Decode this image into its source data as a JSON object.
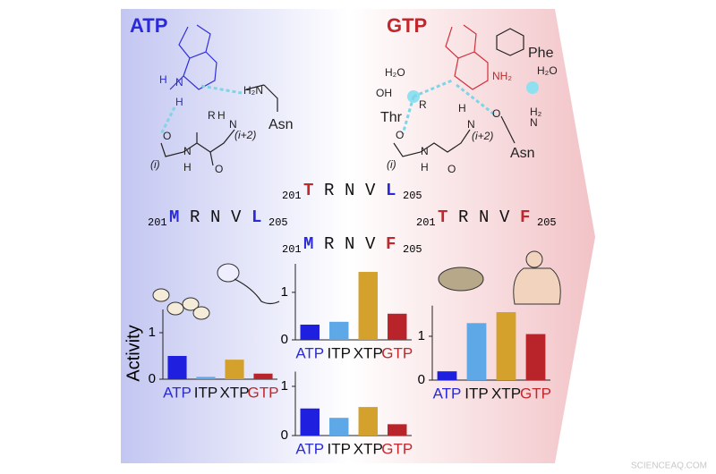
{
  "chart_data": [
    {
      "type": "bar",
      "ylabel": "Activity",
      "categories": [
        "ATP",
        "ITP",
        "XTP",
        "GTP"
      ],
      "label_colors": [
        "#2a2ad6",
        "#111111",
        "#111111",
        "#c0282d"
      ],
      "values": [
        0.5,
        0.05,
        0.42,
        0.12
      ],
      "colors": [
        "#1f1fe0",
        "#5ea8e8",
        "#d3a12c",
        "#b8242a"
      ],
      "ylim": [
        0,
        1.5
      ],
      "yticks": [
        0,
        1
      ]
    },
    {
      "type": "bar",
      "categories": [
        "ATP",
        "ITP",
        "XTP",
        "GTP"
      ],
      "label_colors": [
        "#2a2ad6",
        "#111111",
        "#111111",
        "#c0282d"
      ],
      "values": [
        0.32,
        0.38,
        1.43,
        0.55
      ],
      "colors": [
        "#1f1fe0",
        "#5ea8e8",
        "#d3a12c",
        "#b8242a"
      ],
      "ylim": [
        0,
        1.6
      ],
      "yticks": [
        0,
        1
      ]
    },
    {
      "type": "bar",
      "categories": [
        "ATP",
        "ITP",
        "XTP",
        "GTP"
      ],
      "label_colors": [
        "#2a2ad6",
        "#111111",
        "#111111",
        "#c0282d"
      ],
      "values": [
        0.55,
        0.36,
        0.58,
        0.23
      ],
      "colors": [
        "#1f1fe0",
        "#5ea8e8",
        "#d3a12c",
        "#b8242a"
      ],
      "ylim": [
        0,
        1.3
      ],
      "yticks": [
        0,
        1
      ]
    },
    {
      "type": "bar",
      "categories": [
        "ATP",
        "ITP",
        "XTP",
        "GTP"
      ],
      "label_colors": [
        "#2a2ad6",
        "#111111",
        "#111111",
        "#c0282d"
      ],
      "values": [
        0.2,
        1.3,
        1.55,
        1.05
      ],
      "colors": [
        "#1f1fe0",
        "#5ea8e8",
        "#d3a12c",
        "#b8242a"
      ],
      "ylim": [
        0,
        1.7
      ],
      "yticks": [
        0,
        1
      ]
    }
  ],
  "figure": {
    "left_title": "ATP",
    "right_title": "GTP",
    "chem_labels": [
      "H",
      "N",
      "H",
      "H₂N",
      "Asn",
      "R",
      "H",
      "N",
      "(i+2)",
      "(i)",
      "O",
      "N",
      "H",
      "O",
      "H₂O",
      "OH",
      "Thr",
      "Phe",
      "NH₂",
      "H₂O",
      "R",
      "H",
      "N",
      "(i+2)",
      "(i)",
      "O",
      "N",
      "H",
      "O",
      "H₂",
      "N",
      "Asn",
      "O"
    ],
    "sequences": [
      {
        "start": "201",
        "residues": [
          {
            "text": "M",
            "color": "#2a2ad6"
          },
          {
            "text": "R",
            "color": "#111111"
          },
          {
            "text": "N",
            "color": "#111111"
          },
          {
            "text": "V",
            "color": "#111111"
          },
          {
            "text": "L",
            "color": "#2a2ad6"
          }
        ],
        "end": "205"
      },
      {
        "start": "201",
        "residues": [
          {
            "text": "T",
            "color": "#c0282d"
          },
          {
            "text": "R",
            "color": "#111111"
          },
          {
            "text": "N",
            "color": "#111111"
          },
          {
            "text": "V",
            "color": "#111111"
          },
          {
            "text": "L",
            "color": "#2a2ad6"
          }
        ],
        "end": "205"
      },
      {
        "start": "201",
        "residues": [
          {
            "text": "M",
            "color": "#2a2ad6"
          },
          {
            "text": "R",
            "color": "#111111"
          },
          {
            "text": "N",
            "color": "#111111"
          },
          {
            "text": "V",
            "color": "#111111"
          },
          {
            "text": "F",
            "color": "#c0282d"
          }
        ],
        "end": "205"
      },
      {
        "start": "201",
        "residues": [
          {
            "text": "T",
            "color": "#c0282d"
          },
          {
            "text": "R",
            "color": "#111111"
          },
          {
            "text": "N",
            "color": "#111111"
          },
          {
            "text": "V",
            "color": "#111111"
          },
          {
            "text": "F",
            "color": "#c0282d"
          }
        ],
        "end": "205"
      }
    ],
    "watermark": "SCIENCEAQ.COM"
  }
}
